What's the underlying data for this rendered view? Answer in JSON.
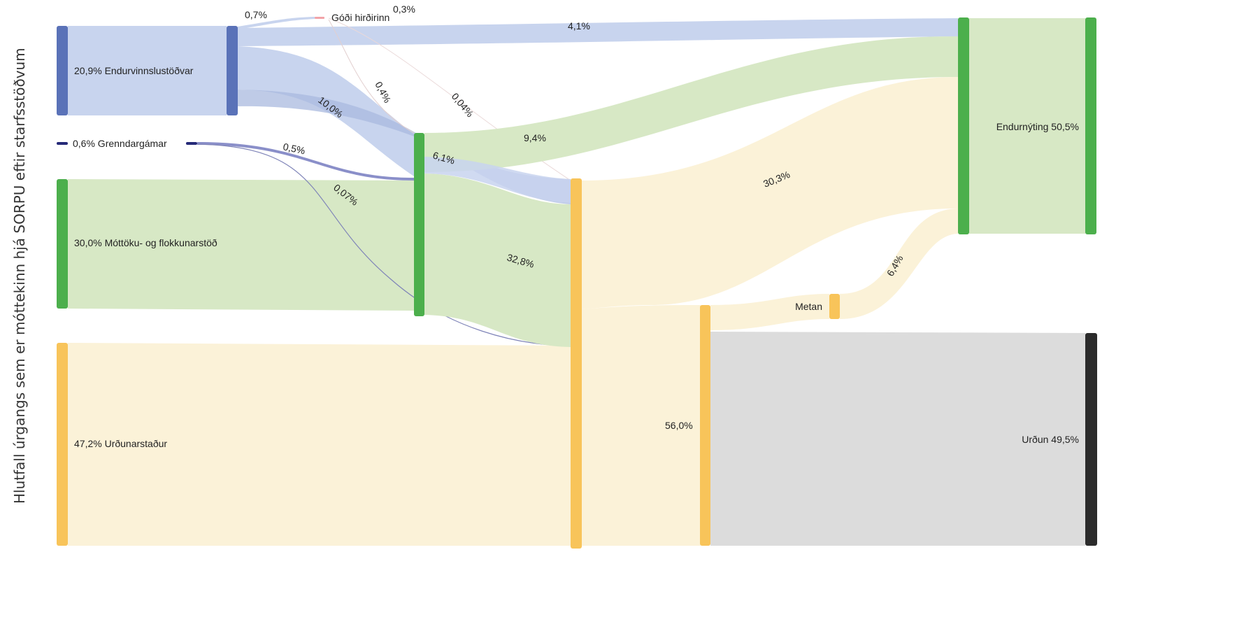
{
  "side_title": "Hlutfall úrgangs sem er móttekinn hjá SORPU eftir  starfsstöðvum",
  "colors": {
    "blue": "#5a72b8",
    "blue_flow": "#c8d4ee",
    "blue_flow_dark": "#a9badf",
    "navy": "#262a78",
    "green": "#4caf4c",
    "green_flow": "#d7e8c5",
    "yellow": "#f8c45a",
    "yellow_flow": "#fbf2d8",
    "gray_flow": "#dcdcdc",
    "black": "#2b2b2b",
    "pink": "#f2a3a8"
  },
  "nodes": {
    "endurvinnslustodvar": "20,9% Endurvinnslustöðvar",
    "grenndargamar": "0,6% Grenndargámar",
    "mottoku": "30,0% Móttöku- og flokkunarstöð",
    "urdunarstadur": "47,2% Urðunarstaður",
    "godi": "Góði hirðirinn",
    "metan": "Metan",
    "endurnyting": "Endurnýting 50,5%",
    "urdun": "Urðun 49,5%"
  },
  "flows": {
    "f_07": "0,7%",
    "f_03": "0,3%",
    "f_41": "4,1%",
    "f_04": "0,4%",
    "f_004": "0,04%",
    "f_100": "10,0%",
    "f_05": "0,5%",
    "f_007": "0,07%",
    "f_94": "9,4%",
    "f_61": "6,1%",
    "f_328": "32,8%",
    "f_303": "30,3%",
    "f_64": "6,4%",
    "f_560": "56,0%"
  }
}
